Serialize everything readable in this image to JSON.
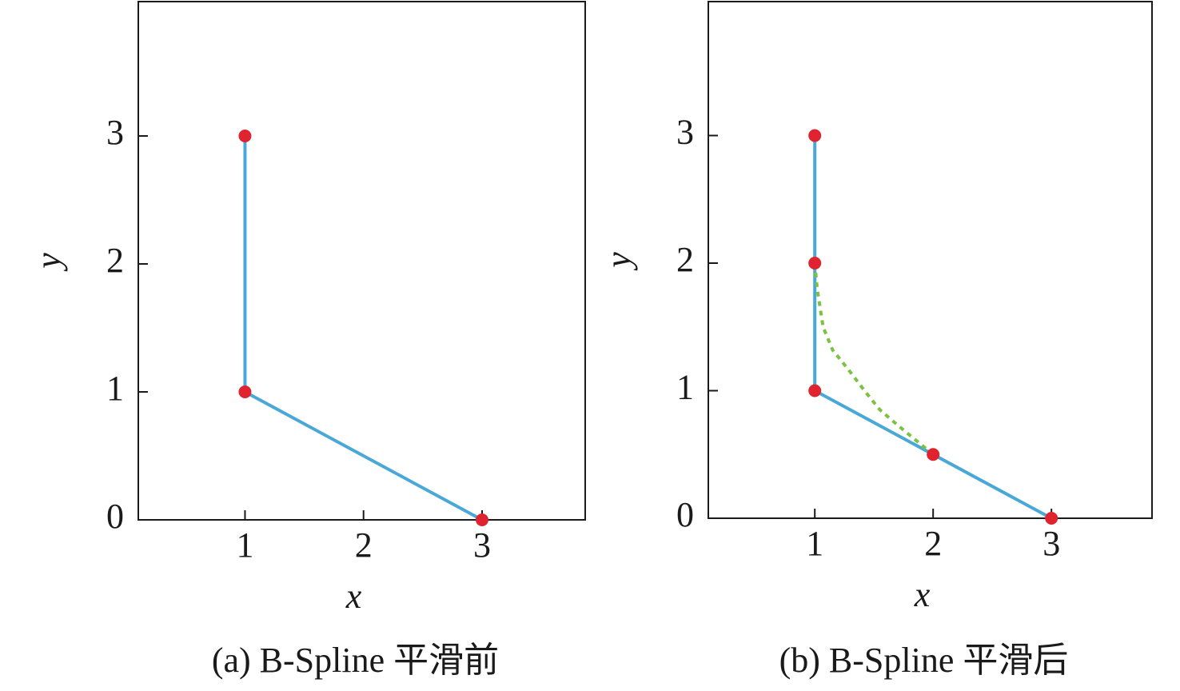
{
  "chart_data": [
    {
      "type": "line",
      "caption": "(a) B-Spline 平滑前",
      "xlabel": "x",
      "ylabel": "y",
      "xlim": [
        0.1,
        3.87
      ],
      "ylim": [
        0,
        4.05
      ],
      "xticks": [
        1,
        2,
        3
      ],
      "yticks": [
        0,
        1,
        2,
        3
      ],
      "series": [
        {
          "mode": "line",
          "color": "#4aa8d8",
          "x": [
            1,
            1,
            3
          ],
          "values": [
            3,
            1,
            0
          ]
        },
        {
          "mode": "markers",
          "color": "#e0242f",
          "x": [
            1,
            1,
            3
          ],
          "values": [
            3,
            1,
            0
          ]
        }
      ]
    },
    {
      "type": "line",
      "caption": "(b) B-Spline 平滑后",
      "xlabel": "x",
      "ylabel": "y",
      "xlim": [
        0.1,
        3.85
      ],
      "ylim": [
        0,
        4.05
      ],
      "xticks": [
        1,
        2,
        3
      ],
      "yticks": [
        0,
        1,
        2,
        3
      ],
      "series": [
        {
          "mode": "line",
          "color": "#4aa8d8",
          "x": [
            1,
            1,
            3
          ],
          "values": [
            3,
            1,
            0
          ]
        },
        {
          "mode": "dashed",
          "color": "#7cc242",
          "x": [
            1,
            1.02,
            1.07,
            1.15,
            1.28,
            1.42,
            1.55,
            1.7,
            1.83,
            2
          ],
          "values": [
            2,
            1.8,
            1.5,
            1.32,
            1.17,
            1.0,
            0.85,
            0.73,
            0.63,
            0.5
          ]
        },
        {
          "mode": "markers",
          "color": "#e0242f",
          "x": [
            1,
            1,
            1,
            2,
            3
          ],
          "values": [
            3,
            2,
            1,
            0.5,
            0
          ]
        }
      ]
    }
  ]
}
